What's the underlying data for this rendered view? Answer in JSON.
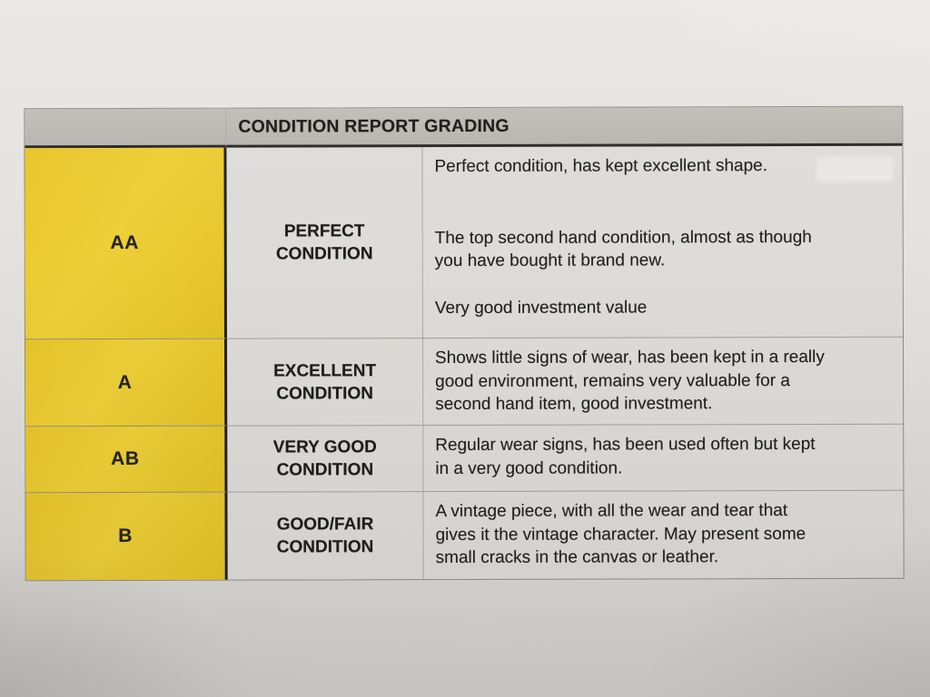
{
  "header": {
    "title": "CONDITION REPORT GRADING"
  },
  "table": {
    "rows": [
      {
        "grade": "AA",
        "condition": "PERFECT\nCONDITION",
        "descriptions": [
          "Perfect condition, has kept excellent shape.",
          "The top second hand condition, almost as though\nyou have bought it brand new.",
          "Very good investment value"
        ]
      },
      {
        "grade": "A",
        "condition": "EXCELLENT\nCONDITION",
        "descriptions": [
          "Shows little signs of wear, has been kept in a really\ngood environment, remains very valuable for a\nsecond hand item, good investment."
        ]
      },
      {
        "grade": "AB",
        "condition": "VERY GOOD\nCONDITION",
        "descriptions": [
          "Regular wear signs, has been used often but kept\nin a very good condition."
        ]
      },
      {
        "grade": "B",
        "condition": "GOOD/FAIR\nCONDITION",
        "descriptions": [
          "A vintage piece, with all the wear and tear that\ngives it the vintage character. May present some\nsmall cracks in the canvas or leather."
        ]
      }
    ]
  },
  "colors": {
    "grade_column_yellow": "#EAC82E",
    "header_bar_gray": "#BCB9B3",
    "cell_background": "#DEDCD9",
    "page_background": "#E2E0DD",
    "text": "#211F1C",
    "heavy_rule": "#2B2926"
  }
}
